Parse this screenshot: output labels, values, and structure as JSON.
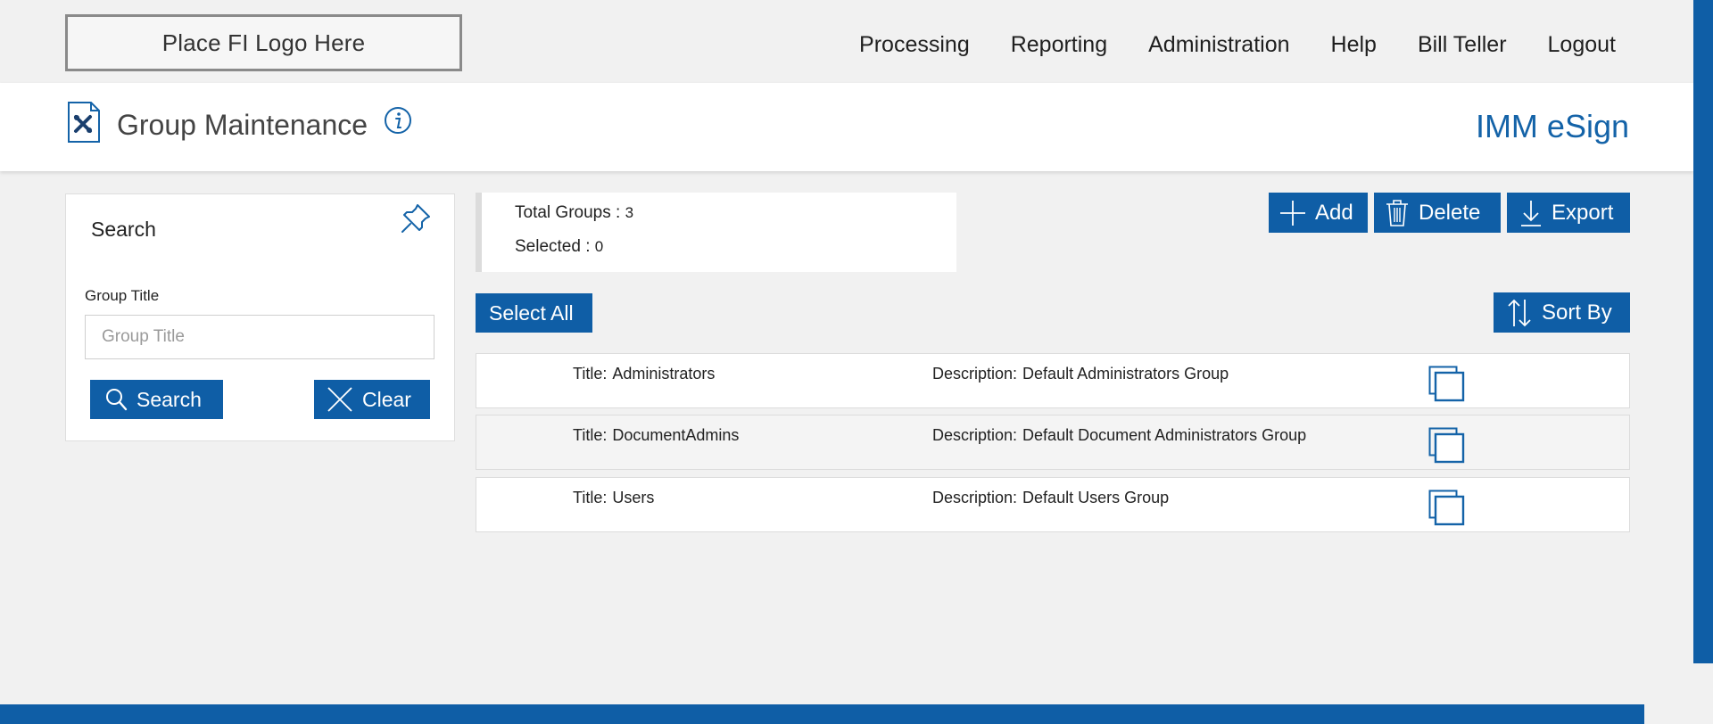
{
  "header": {
    "logo_text": "Place FI Logo Here",
    "nav": [
      "Processing",
      "Reporting",
      "Administration",
      "Help",
      "Bill Teller",
      "Logout"
    ]
  },
  "titlebar": {
    "page_title": "Group Maintenance",
    "brand": "IMM eSign",
    "page_icon": "document-wrench-icon",
    "info_icon": "info-icon"
  },
  "search": {
    "heading": "Search",
    "pin_icon": "pin-icon",
    "field_label": "Group Title",
    "field_placeholder": "Group Title",
    "field_value": "",
    "search_label": "Search",
    "clear_label": "Clear"
  },
  "summary": {
    "total_label": "Total Groups : ",
    "total_value": "3",
    "selected_label": "Selected : ",
    "selected_value": "0"
  },
  "actions": {
    "add_label": "Add",
    "delete_label": "Delete",
    "export_label": "Export",
    "select_all_label": "Select All",
    "sort_label": "Sort By"
  },
  "rows": [
    {
      "title_key": "Title:",
      "title": "Administrators",
      "desc_key": "Description:",
      "desc": "Default Administrators Group"
    },
    {
      "title_key": "Title:",
      "title": "DocumentAdmins",
      "desc_key": "Description:",
      "desc": "Default Document Administrators Group"
    },
    {
      "title_key": "Title:",
      "title": "Users",
      "desc_key": "Description:",
      "desc": "Default Users Group"
    }
  ],
  "colors": {
    "accent": "#0f5ea6",
    "brand_text": "#1463a8",
    "background": "#f1f1f1"
  }
}
